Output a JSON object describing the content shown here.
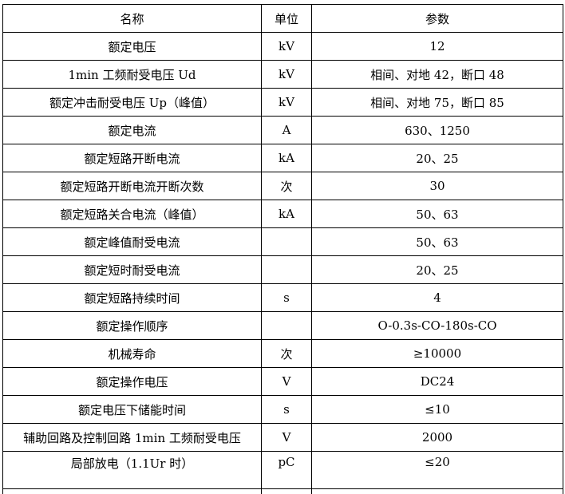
{
  "header": {
    "name": "名称",
    "unit": "单位",
    "param": "参数"
  },
  "rows": [
    {
      "name": "额定电压",
      "unit": "kV",
      "param": "12"
    },
    {
      "name": "1min 工频耐受电压 Ud",
      "unit": "kV",
      "param": "相间、对地 42，断口 48"
    },
    {
      "name": "额定冲击耐受电压 Up（峰值）",
      "unit": "kV",
      "param": "相间、对地 75，断口 85"
    },
    {
      "name": "额定电流",
      "unit": "A",
      "param": "630、1250"
    },
    {
      "name": "额定短路开断电流",
      "unit": "kA",
      "param": "20、25"
    },
    {
      "name": "额定短路开断电流开断次数",
      "unit": "次",
      "param": "30"
    },
    {
      "name": "额定短路关合电流（峰值）",
      "unit": "kA",
      "param": "50、63"
    },
    {
      "name": "额定峰值耐受电流",
      "unit": "",
      "param": "50、63"
    },
    {
      "name": "额定短时耐受电流",
      "unit": "",
      "param": "20、25"
    },
    {
      "name": "额定短路持续时间",
      "unit": "s",
      "param": "4"
    },
    {
      "name": "额定操作顺序",
      "unit": "",
      "param": "O-0.3s-CO-180s-CO"
    },
    {
      "name": "机械寿命",
      "unit": "次",
      "param": "≥10000"
    },
    {
      "name": "额定操作电压",
      "unit": "V",
      "param": "DC24"
    },
    {
      "name": "额定电压下储能时间",
      "unit": "s",
      "param": "≤10"
    },
    {
      "name": "辅助回路及控制回路 1min 工频耐受电压",
      "unit": "V",
      "param": "2000"
    },
    {
      "name": "局部放电（1.1Ur 时）",
      "unit": "pC",
      "param": "≤20"
    }
  ]
}
